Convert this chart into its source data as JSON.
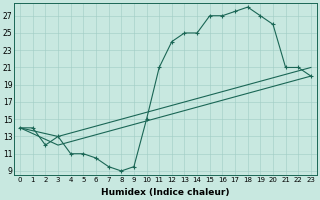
{
  "xlabel": "Humidex (Indice chaleur)",
  "background_color": "#c8e8e0",
  "grid_color": "#a0ccc4",
  "line_color": "#1a6655",
  "xlim": [
    -0.5,
    23.5
  ],
  "ylim": [
    8.5,
    28.5
  ],
  "yticks": [
    9,
    11,
    13,
    15,
    17,
    19,
    21,
    23,
    25,
    27
  ],
  "xticks": [
    0,
    1,
    2,
    3,
    4,
    5,
    6,
    7,
    8,
    9,
    10,
    11,
    12,
    13,
    14,
    15,
    16,
    17,
    18,
    19,
    20,
    21,
    22,
    23
  ],
  "curve1_x": [
    0,
    1,
    2,
    3,
    4,
    5,
    6,
    7,
    8,
    9,
    10,
    11,
    12,
    13,
    14,
    15,
    16,
    17,
    18,
    19,
    20,
    21,
    22,
    23
  ],
  "curve1_y": [
    14,
    14,
    12,
    13,
    11,
    11,
    10.5,
    9.5,
    9,
    9.5,
    15,
    21,
    24,
    25,
    25,
    27,
    27,
    27.5,
    28,
    27,
    26,
    21,
    21,
    20
  ],
  "curve2_x": [
    0,
    3,
    23
  ],
  "curve2_y": [
    14,
    13,
    21
  ],
  "curve3_x": [
    0,
    3,
    23
  ],
  "curve3_y": [
    14,
    12,
    20
  ]
}
